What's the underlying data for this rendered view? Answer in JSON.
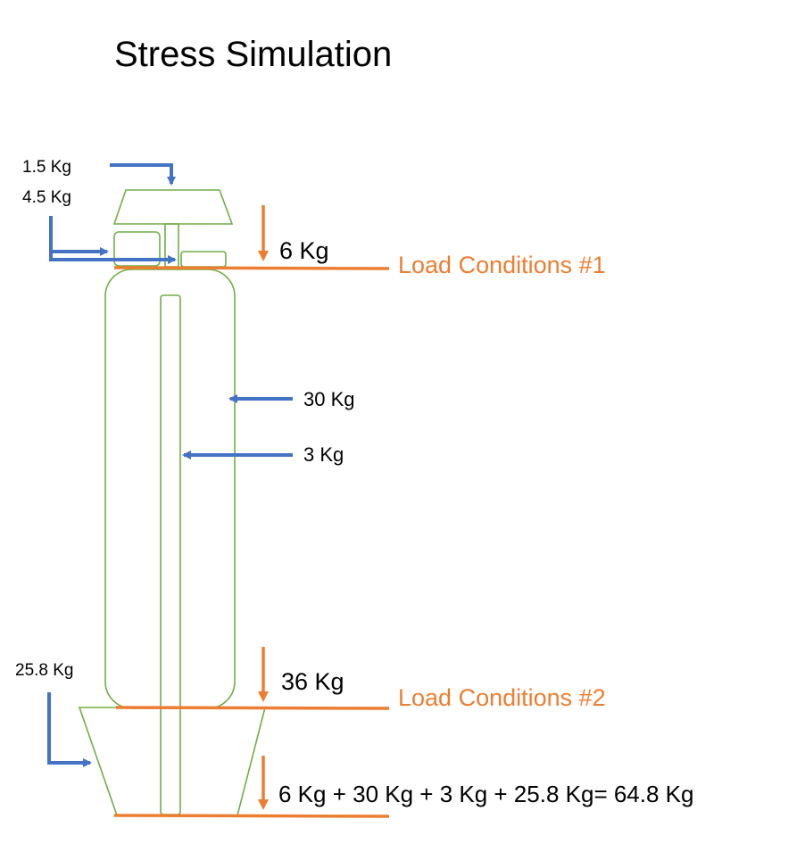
{
  "title": "Stress Simulation",
  "colors": {
    "structure": "#70AD47",
    "blue_arrow": "#4472C4",
    "orange": "#ED7D31",
    "text": "#000000"
  },
  "labels": {
    "load_top_1": "1.5 Kg",
    "load_top_2": "4.5 Kg",
    "load_6": "6 Kg",
    "load_30": "30 Kg",
    "load_3": "3 Kg",
    "load_36": "36 Kg",
    "load_25_8": "25.8 Kg",
    "total": "6 Kg + 30 Kg + 3 Kg + 25.8 Kg= 64.8 Kg"
  },
  "conditions": {
    "one": "Load Conditions #1",
    "two": "Load Conditions #2"
  }
}
